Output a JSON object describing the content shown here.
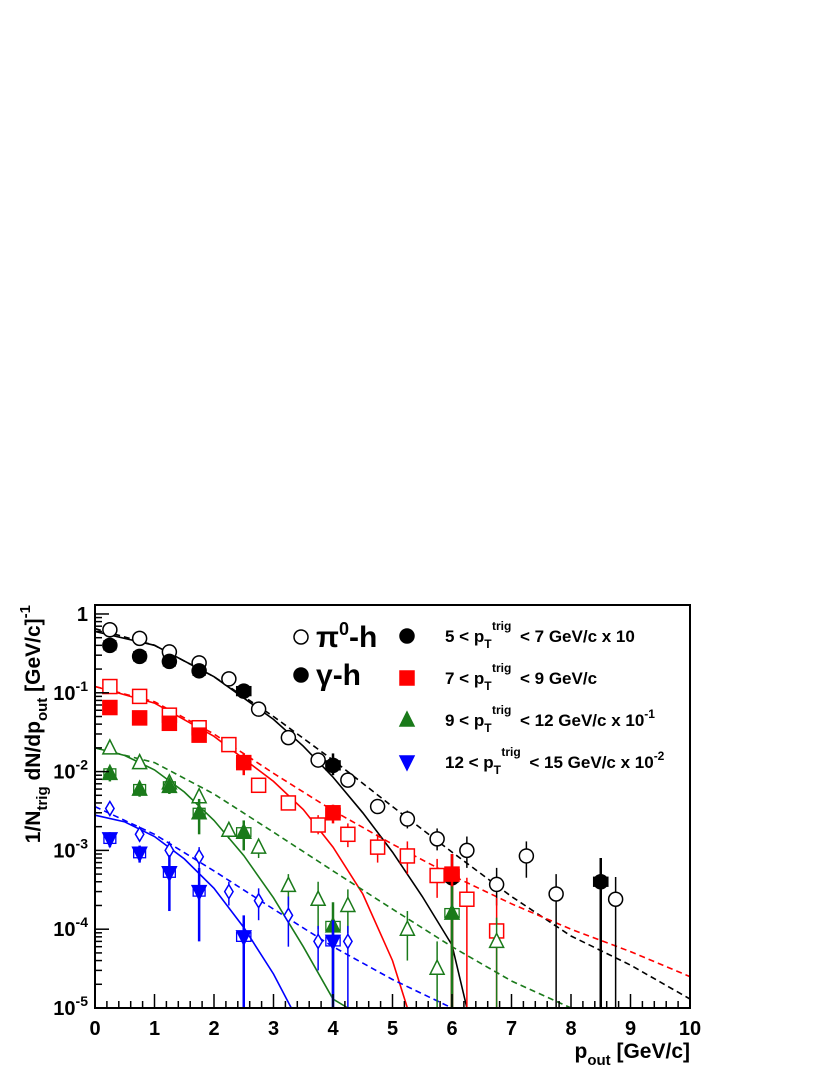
{
  "chart_data": {
    "type": "scatter",
    "xlabel": {
      "base": "p",
      "sub": "out",
      "unit": " [GeV/c]"
    },
    "ylabel": {
      "p1": "1/N",
      "sub1": "trig",
      "p2": " dN/dp",
      "sub2": "out",
      "p3": " [GeV/c]",
      "sup": "-1"
    },
    "xlim": [
      0,
      10
    ],
    "ylim": [
      1e-05,
      1.3
    ],
    "yscale": "log",
    "x_ticks": [
      "0",
      "1",
      "2",
      "3",
      "4",
      "5",
      "6",
      "7",
      "8",
      "9",
      "10"
    ],
    "y_ticks": [
      {
        "value": 1,
        "label": "1",
        "sup": ""
      },
      {
        "value": 0.1,
        "label": "10",
        "sup": "-1"
      },
      {
        "value": 0.01,
        "label": "10",
        "sup": "-2"
      },
      {
        "value": 0.001,
        "label": "10",
        "sup": "-3"
      },
      {
        "value": 0.0001,
        "label": "10",
        "sup": "-4"
      },
      {
        "value": 1e-05,
        "label": "10",
        "sup": "-5"
      }
    ],
    "legend_left": [
      {
        "label": "π",
        "sup": "0",
        "tail": "-h",
        "marker": "open-circle"
      },
      {
        "label": "γ",
        "sup": "",
        "tail": "-h",
        "marker": "filled-circle"
      }
    ],
    "legend_right": [
      {
        "pre": "5 < p",
        "sub": "T",
        "sup": "trig",
        "post": " < 7 GeV/c x 10",
        "post_sup": "",
        "marker": "circle",
        "color": "#000000"
      },
      {
        "pre": "7 < p",
        "sub": "T",
        "sup": "trig",
        "post": " < 9 GeV/c",
        "post_sup": "",
        "marker": "square",
        "color": "#ff0000"
      },
      {
        "pre": "9 < p",
        "sub": "T",
        "sup": "trig",
        "post": " < 12 GeV/c x 10",
        "post_sup": "-1",
        "marker": "triangle-up",
        "color": "#1a7a1a"
      },
      {
        "pre": "12 < p",
        "sub": "T",
        "sup": "trig",
        "post": " < 15 GeV/c x 10",
        "post_sup": "-2",
        "marker": "triangle-down",
        "color": "#0000ff"
      }
    ],
    "series": [
      {
        "name": "5 < pT trig < 7 GeV/c x 10",
        "particle": "pi0-h",
        "marker": "open-circle",
        "color": "#000000",
        "x": [
          0.25,
          0.75,
          1.25,
          1.75,
          2.25,
          2.75,
          3.25,
          3.75,
          4.25,
          4.75,
          5.25,
          5.75,
          6.25,
          6.75,
          7.25,
          7.75,
          8.75
        ],
        "y": [
          0.63,
          0.49,
          0.33,
          0.24,
          0.15,
          0.062,
          0.027,
          0.014,
          0.0078,
          0.0036,
          0.0025,
          0.0014,
          0.001,
          0.00037,
          0.00085,
          0.00028,
          0.00024
        ],
        "err_lo": [
          0.6,
          0.46,
          0.31,
          0.22,
          0.14,
          0.057,
          0.024,
          0.012,
          0.0068,
          0.003,
          0.0019,
          0.001,
          0.0006,
          0.0002,
          0.00045,
          1e-05,
          1e-05
        ],
        "err_hi": [
          0.67,
          0.52,
          0.36,
          0.26,
          0.16,
          0.067,
          0.03,
          0.016,
          0.0088,
          0.0043,
          0.0032,
          0.0019,
          0.0015,
          0.0006,
          0.0013,
          0.0005,
          0.00046
        ]
      },
      {
        "name": "5 < pT trig < 7 GeV/c x 10",
        "particle": "gamma-h",
        "marker": "filled-circle",
        "color": "#000000",
        "x": [
          0.25,
          0.75,
          1.25,
          1.75,
          2.5,
          4.0,
          6.0,
          8.5
        ],
        "y": [
          0.4,
          0.29,
          0.25,
          0.19,
          0.105,
          0.012,
          0.00045,
          0.0004
        ],
        "err_lo": [
          0.36,
          0.26,
          0.21,
          0.16,
          0.09,
          0.009,
          1e-05,
          1e-05
        ],
        "err_hi": [
          0.44,
          0.32,
          0.28,
          0.22,
          0.12,
          0.017,
          0.0009,
          0.0008
        ],
        "sys_w": [
          0.1,
          0.1,
          0.1,
          0.1,
          0.12,
          0.12,
          0.1,
          0.12
        ]
      },
      {
        "name": "7 < pT trig < 9 GeV/c",
        "particle": "pi0-h",
        "marker": "open-square",
        "color": "#ff0000",
        "x": [
          0.25,
          0.75,
          1.25,
          1.75,
          2.25,
          2.75,
          3.25,
          3.75,
          4.25,
          4.75,
          5.25,
          5.75,
          6.25,
          6.75
        ],
        "y": [
          0.12,
          0.09,
          0.052,
          0.036,
          0.022,
          0.0067,
          0.004,
          0.0021,
          0.0016,
          0.0011,
          0.00085,
          0.00048,
          0.00024,
          9.5e-05
        ],
        "err_lo": [
          0.114,
          0.085,
          0.048,
          0.032,
          0.019,
          0.0058,
          0.0034,
          0.0016,
          0.0011,
          0.0007,
          0.0005,
          0.00025,
          1e-05,
          1e-05
        ],
        "err_hi": [
          0.128,
          0.096,
          0.056,
          0.04,
          0.025,
          0.0077,
          0.0047,
          0.0028,
          0.0022,
          0.0016,
          0.0013,
          0.00078,
          0.00045,
          0.00025
        ]
      },
      {
        "name": "7 < pT trig < 9 GeV/c",
        "particle": "gamma-h",
        "marker": "filled-square",
        "color": "#ff0000",
        "x": [
          0.25,
          0.75,
          1.25,
          1.75,
          2.5,
          4.0,
          6.0
        ],
        "y": [
          0.065,
          0.048,
          0.041,
          0.029,
          0.013,
          0.003,
          0.0005
        ],
        "err_lo": [
          0.058,
          0.042,
          0.035,
          0.024,
          0.009,
          0.0022,
          1e-05
        ],
        "err_hi": [
          0.072,
          0.055,
          0.047,
          0.035,
          0.017,
          0.0038,
          0.0009
        ],
        "sys_w": [
          0.1,
          0.1,
          0.1,
          0.1,
          0.12,
          0.12,
          0.12
        ]
      },
      {
        "name": "9 < pT trig < 12 GeV/c x 10-1",
        "particle": "pi0-h",
        "marker": "open-triangle-up",
        "color": "#1a7a1a",
        "x": [
          0.25,
          0.75,
          1.25,
          1.75,
          2.25,
          2.75,
          3.25,
          3.75,
          4.25,
          5.25,
          5.75,
          6.75
        ],
        "y": [
          0.02,
          0.013,
          0.0072,
          0.0048,
          0.0018,
          0.0011,
          0.00036,
          0.00024,
          0.0002,
          0.0001,
          3.2e-05,
          7e-05
        ],
        "err_lo": [
          0.018,
          0.011,
          0.006,
          0.0038,
          0.0014,
          0.0008,
          0.0002,
          0.0001,
          9e-05,
          4e-05,
          1e-05,
          1e-05
        ],
        "err_hi": [
          0.022,
          0.015,
          0.0085,
          0.0058,
          0.0022,
          0.0014,
          0.0005,
          0.0004,
          0.00032,
          0.00017,
          7e-05,
          0.00014
        ]
      },
      {
        "name": "9 < pT trig < 12 GeV/c x 10-1",
        "particle": "gamma-h",
        "marker": "filled-triangle-up",
        "color": "#1a7a1a",
        "x": [
          0.25,
          0.75,
          1.25,
          1.75,
          2.5,
          4.0,
          6.0
        ],
        "y": [
          0.0095,
          0.006,
          0.0065,
          0.003,
          0.0017,
          0.00011,
          0.00016
        ],
        "err_lo": [
          0.0075,
          0.0048,
          0.0052,
          0.0016,
          0.001,
          1e-05,
          1e-05
        ],
        "err_hi": [
          0.0115,
          0.0072,
          0.0078,
          0.0045,
          0.0024,
          0.00022,
          0.00035
        ],
        "sys_w": [
          0.1,
          0.1,
          0.1,
          0.1,
          0.12,
          0.12,
          0.12
        ]
      },
      {
        "name": "12 < pT trig < 15 GeV/c x 10-2",
        "particle": "pi0-h",
        "marker": "open-diamond",
        "color": "#0000ff",
        "x": [
          0.25,
          0.75,
          1.25,
          1.75,
          2.25,
          2.75,
          3.25,
          3.75,
          4.25
        ],
        "y": [
          0.0034,
          0.0016,
          0.001,
          0.00083,
          0.0003,
          0.00023,
          0.00015,
          7e-05,
          7e-05
        ],
        "err_lo": [
          0.0029,
          0.0013,
          0.0007,
          0.0006,
          0.0002,
          0.00013,
          6e-05,
          3e-05,
          1e-05
        ],
        "err_hi": [
          0.004,
          0.0019,
          0.0013,
          0.0011,
          0.0004,
          0.00033,
          0.00026,
          0.00011,
          0.00011
        ]
      },
      {
        "name": "12 < pT trig < 15 GeV/c x 10-2",
        "particle": "gamma-h",
        "marker": "filled-triangle-down",
        "color": "#0000ff",
        "x": [
          0.25,
          0.75,
          1.25,
          1.75,
          2.5,
          4.0
        ],
        "y": [
          0.0014,
          0.00092,
          0.00052,
          0.0003,
          8e-05,
          7e-05
        ],
        "err_lo": [
          0.0011,
          0.0007,
          0.00017,
          7e-05,
          1e-05,
          1e-05
        ],
        "err_hi": [
          0.0017,
          0.00115,
          0.00087,
          0.0006,
          0.00015,
          0.00013
        ],
        "sys_w": [
          0.1,
          0.1,
          0.1,
          0.1,
          0.12,
          0.12
        ]
      }
    ],
    "fits": [
      {
        "name": "fit-black-solid",
        "color": "#000000",
        "dash": false,
        "x": [
          0,
          1,
          2,
          3,
          3.5,
          4,
          4.5,
          5,
          5.5,
          6,
          6.25
        ],
        "y": [
          0.6,
          0.4,
          0.16,
          0.046,
          0.021,
          0.0085,
          0.003,
          0.00095,
          0.00026,
          6.3e-05,
          1e-05
        ]
      },
      {
        "name": "fit-black-dashed",
        "color": "#000000",
        "dash": true,
        "x": [
          0,
          1,
          2,
          3,
          4,
          5,
          6,
          7,
          8,
          9,
          10
        ],
        "y": [
          0.65,
          0.4,
          0.16,
          0.05,
          0.014,
          0.0036,
          0.00095,
          0.00026,
          8.2e-05,
          3.5e-05,
          1.3e-05
        ]
      },
      {
        "name": "fit-red-solid",
        "color": "#ff0000",
        "dash": false,
        "x": [
          0,
          1,
          2,
          3,
          3.5,
          4,
          4.5,
          5,
          5.25
        ],
        "y": [
          0.12,
          0.074,
          0.028,
          0.0075,
          0.0033,
          0.0011,
          0.00028,
          4e-05,
          1e-05
        ]
      },
      {
        "name": "fit-red-dashed",
        "color": "#ff0000",
        "dash": true,
        "x": [
          0,
          1,
          2,
          3,
          4,
          5,
          6,
          7,
          8,
          9,
          10
        ],
        "y": [
          0.12,
          0.077,
          0.03,
          0.0095,
          0.0032,
          0.0012,
          0.00048,
          0.00021,
          0.0001,
          5.2e-05,
          2.5e-05
        ]
      },
      {
        "name": "fit-green-solid",
        "color": "#1a7a1a",
        "dash": false,
        "x": [
          0,
          0.5,
          1,
          1.5,
          2,
          2.5,
          3,
          3.5,
          4,
          4.25
        ],
        "y": [
          0.02,
          0.016,
          0.0105,
          0.0055,
          0.0024,
          0.00086,
          0.00025,
          6e-05,
          1.3e-05,
          1e-05
        ]
      },
      {
        "name": "fit-green-dashed",
        "color": "#1a7a1a",
        "dash": true,
        "x": [
          0,
          1,
          2,
          3,
          4,
          5,
          6,
          7,
          8,
          8.5
        ],
        "y": [
          0.02,
          0.013,
          0.0052,
          0.0017,
          0.00055,
          0.00018,
          6e-05,
          2.2e-05,
          1e-05,
          1e-05
        ]
      },
      {
        "name": "fit-blue-solid",
        "color": "#0000ff",
        "dash": false,
        "x": [
          0,
          0.5,
          1,
          1.5,
          2,
          2.5,
          3,
          3.3
        ],
        "y": [
          0.0028,
          0.0023,
          0.0015,
          0.00078,
          0.00033,
          0.000105,
          2.7e-05,
          1e-05
        ]
      },
      {
        "name": "fit-blue-dashed",
        "color": "#0000ff",
        "dash": true,
        "x": [
          0,
          1,
          2,
          3,
          4,
          5,
          6,
          7,
          8
        ],
        "y": [
          0.0036,
          0.0016,
          0.00055,
          0.00018,
          6e-05,
          2.3e-05,
          1e-05,
          1e-05,
          1e-05
        ]
      }
    ],
    "grid": false,
    "legend_position": "top-right"
  }
}
